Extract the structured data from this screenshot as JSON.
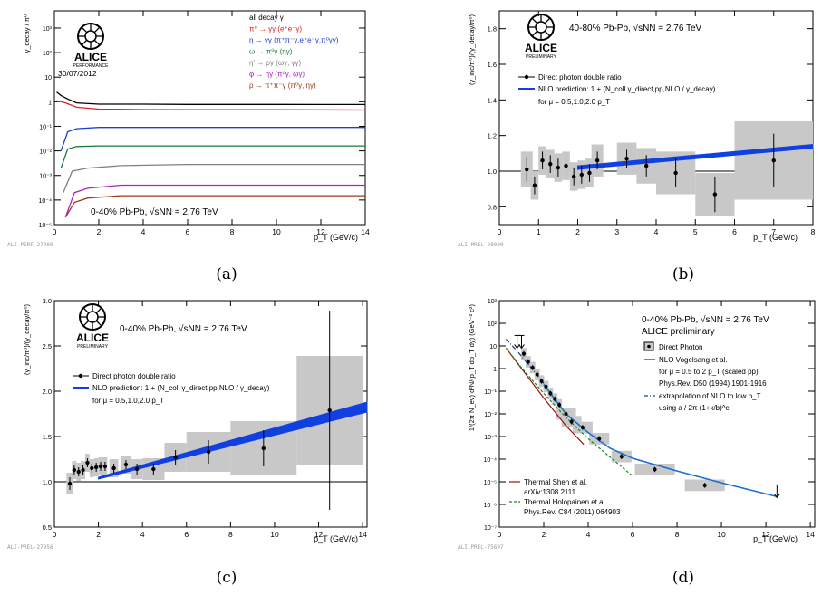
{
  "captions": [
    "(a)",
    "(b)",
    "(c)",
    "(d)"
  ],
  "chart_data": [
    {
      "type": "line",
      "id": "a",
      "ylabel": "γ_decay / π⁰",
      "xlabel": "p_T (GeV/c)",
      "logy": true,
      "xlim": [
        0,
        14
      ],
      "ylim": [
        1e-05,
        5000
      ],
      "xticks": [
        0,
        2,
        4,
        6,
        8,
        10,
        12,
        14
      ],
      "yticks": [
        "10⁻⁵",
        "10⁻⁴",
        "10⁻³",
        "10⁻²",
        "10⁻¹",
        "1",
        "10",
        "10²",
        "10³"
      ],
      "date": "30/07/2012",
      "logo": {
        "name": "ALICE",
        "subtitle": "PERFORMANCE"
      },
      "system_label": "0-40%  Pb-Pb, √sNN = 2.76 TeV",
      "tag": "ALI-PERF-27980",
      "legend": [
        {
          "label": "all decay γ",
          "color": "#000000"
        },
        {
          "label": "π⁰ → γγ (e⁺e⁻γ)",
          "color": "#e02020"
        },
        {
          "label": "η → γγ (π⁺π⁻γ,e⁺e⁻γ,π⁰γγ)",
          "color": "#1f3fd0"
        },
        {
          "label": "ω → π⁰γ (ηγ)",
          "color": "#1a7a3a"
        },
        {
          "label": "η' → ργ (ωγ, γγ)",
          "color": "#808080"
        },
        {
          "label": "φ → ηγ (π⁰γ, ωγ)",
          "color": "#b020c8"
        },
        {
          "label": "ρ → π⁺π⁻γ (π⁰γ, ηγ)",
          "color": "#9a3a1a"
        }
      ],
      "series": [
        {
          "name": "all decay γ",
          "color": "#000000",
          "points": [
            [
              0.1,
              2.5
            ],
            [
              0.3,
              1.8
            ],
            [
              0.6,
              1.3
            ],
            [
              1,
              0.9
            ],
            [
              2,
              0.8
            ],
            [
              4,
              0.8
            ],
            [
              6,
              0.78
            ],
            [
              8,
              0.78
            ],
            [
              10,
              0.78
            ],
            [
              12,
              0.77
            ],
            [
              14,
              0.77
            ]
          ]
        },
        {
          "name": "π⁰ → γγ (e⁺e⁻γ)",
          "color": "#e02020",
          "points": [
            [
              0.1,
              1.1
            ],
            [
              0.5,
              0.9
            ],
            [
              1,
              0.6
            ],
            [
              2,
              0.5
            ],
            [
              4,
              0.48
            ],
            [
              7,
              0.47
            ],
            [
              10,
              0.47
            ],
            [
              14,
              0.46
            ]
          ]
        },
        {
          "name": "η → γγ (π⁺π⁻γ,e⁺e⁻γ,π⁰γγ)",
          "color": "#1f3fd0",
          "points": [
            [
              0.3,
              0.01
            ],
            [
              0.6,
              0.06
            ],
            [
              1,
              0.08
            ],
            [
              2,
              0.09
            ],
            [
              4,
              0.09
            ],
            [
              7,
              0.09
            ],
            [
              10,
              0.09
            ],
            [
              14,
              0.09
            ]
          ]
        },
        {
          "name": "ω → π⁰γ (ηγ)",
          "color": "#1a7a3a",
          "points": [
            [
              0.3,
              0.002
            ],
            [
              0.6,
              0.012
            ],
            [
              1,
              0.015
            ],
            [
              2,
              0.016
            ],
            [
              5,
              0.016
            ],
            [
              10,
              0.016
            ],
            [
              14,
              0.016
            ]
          ]
        },
        {
          "name": "η' → ργ (ωγ, γγ)",
          "color": "#808080",
          "points": [
            [
              0.4,
              0.0002
            ],
            [
              0.8,
              0.0015
            ],
            [
              1.5,
              0.002
            ],
            [
              3,
              0.0025
            ],
            [
              6,
              0.0028
            ],
            [
              10,
              0.0028
            ],
            [
              14,
              0.0028
            ]
          ]
        },
        {
          "name": "φ → ηγ (π⁰γ, ωγ)",
          "color": "#b020c8",
          "points": [
            [
              0.5,
              2e-05
            ],
            [
              0.9,
              0.0002
            ],
            [
              1.5,
              0.0003
            ],
            [
              3,
              0.0004
            ],
            [
              6,
              0.0004
            ],
            [
              10,
              0.0004
            ],
            [
              14,
              0.0004
            ]
          ]
        },
        {
          "name": "ρ → π⁺π⁻γ (π⁰γ, ηγ)",
          "color": "#9a3a1a",
          "points": [
            [
              0.5,
              2e-05
            ],
            [
              0.9,
              8e-05
            ],
            [
              1.5,
              0.00012
            ],
            [
              3,
              0.00015
            ],
            [
              6,
              0.00015
            ],
            [
              10,
              0.00015
            ],
            [
              14,
              0.00015
            ]
          ]
        }
      ]
    },
    {
      "type": "scatter",
      "id": "b",
      "ylabel": "(γ_inc/π⁰)/(γ_decay/π⁰)",
      "xlabel": "p_T (GeV/c)",
      "xlim": [
        0,
        8
      ],
      "ylim": [
        0.7,
        1.9
      ],
      "xticks": [
        0,
        1,
        2,
        3,
        4,
        5,
        6,
        7,
        8
      ],
      "yticks": [
        0.8,
        1.0,
        1.2,
        1.4,
        1.6,
        1.8
      ],
      "logo": {
        "name": "ALICE",
        "subtitle": "PRELIMINARY"
      },
      "system_label": "40-80%  Pb-Pb, √sNN = 2.76 TeV",
      "tag": "ALI-PREL-28000",
      "legend": [
        {
          "label": "Direct photon double ratio"
        },
        {
          "label": "NLO prediction: 1 + (N_coll γ_direct,pp,NLO / γ_decay)"
        },
        {
          "label": "for μ = 0.5,1.0,2.0 p_T"
        }
      ],
      "points": [
        {
          "x": 0.7,
          "y": 1.01,
          "e": 0.07,
          "bx": 0.15,
          "by": 0.1
        },
        {
          "x": 0.9,
          "y": 0.92,
          "e": 0.05,
          "bx": 0.1,
          "by": 0.08
        },
        {
          "x": 1.1,
          "y": 1.06,
          "e": 0.05,
          "bx": 0.1,
          "by": 0.08
        },
        {
          "x": 1.3,
          "y": 1.04,
          "e": 0.05,
          "bx": 0.1,
          "by": 0.08
        },
        {
          "x": 1.5,
          "y": 1.02,
          "e": 0.05,
          "bx": 0.1,
          "by": 0.08
        },
        {
          "x": 1.7,
          "y": 1.03,
          "e": 0.05,
          "bx": 0.1,
          "by": 0.08
        },
        {
          "x": 1.9,
          "y": 0.97,
          "e": 0.05,
          "bx": 0.1,
          "by": 0.08
        },
        {
          "x": 2.1,
          "y": 0.98,
          "e": 0.05,
          "bx": 0.1,
          "by": 0.08
        },
        {
          "x": 2.3,
          "y": 0.99,
          "e": 0.05,
          "bx": 0.1,
          "by": 0.08
        },
        {
          "x": 2.5,
          "y": 1.06,
          "e": 0.05,
          "bx": 0.15,
          "by": 0.09
        },
        {
          "x": 3.25,
          "y": 1.07,
          "e": 0.05,
          "bx": 0.25,
          "by": 0.09
        },
        {
          "x": 3.75,
          "y": 1.03,
          "e": 0.06,
          "bx": 0.25,
          "by": 0.1
        },
        {
          "x": 4.5,
          "y": 0.99,
          "e": 0.08,
          "bx": 0.5,
          "by": 0.12
        },
        {
          "x": 5.5,
          "y": 0.87,
          "e": 0.1,
          "bx": 0.5,
          "by": 0.12
        },
        {
          "x": 7.0,
          "y": 1.06,
          "e": 0.15,
          "bx": 1.0,
          "by": 0.22
        }
      ],
      "band": {
        "x": [
          2,
          8
        ],
        "lo": [
          1.01,
          1.13
        ],
        "hi": [
          1.03,
          1.15
        ]
      }
    },
    {
      "type": "scatter",
      "id": "c",
      "ylabel": "(γ_inc/π⁰)/(γ_decay/π⁰)",
      "xlabel": "p_T (GeV/c)",
      "xlim": [
        0,
        14.2
      ],
      "ylim": [
        0.5,
        3.0
      ],
      "xticks": [
        0,
        2,
        4,
        6,
        8,
        10,
        12,
        14
      ],
      "yticks": [
        0.5,
        1.0,
        1.5,
        2.0,
        2.5,
        3.0
      ],
      "logo": {
        "name": "ALICE",
        "subtitle": "PRELIMINARY"
      },
      "system_label": "0-40%  Pb-Pb, √sNN = 2.76 TeV",
      "tag": "ALI-PREL-27956",
      "legend": [
        {
          "label": "Direct photon double ratio"
        },
        {
          "label": "NLO prediction: 1 + (N_coll γ_direct,pp,NLO / γ_decay)"
        },
        {
          "label": "for μ = 0.5,1.0,2.0 p_T"
        }
      ],
      "points": [
        {
          "x": 0.7,
          "y": 0.98,
          "e": 0.07,
          "bx": 0.15,
          "by": 0.12
        },
        {
          "x": 0.9,
          "y": 1.13,
          "e": 0.05,
          "bx": 0.1,
          "by": 0.1
        },
        {
          "x": 1.1,
          "y": 1.11,
          "e": 0.05,
          "bx": 0.1,
          "by": 0.1
        },
        {
          "x": 1.3,
          "y": 1.13,
          "e": 0.05,
          "bx": 0.1,
          "by": 0.1
        },
        {
          "x": 1.5,
          "y": 1.21,
          "e": 0.05,
          "bx": 0.1,
          "by": 0.1
        },
        {
          "x": 1.7,
          "y": 1.15,
          "e": 0.05,
          "bx": 0.1,
          "by": 0.1
        },
        {
          "x": 1.9,
          "y": 1.16,
          "e": 0.05,
          "bx": 0.1,
          "by": 0.1
        },
        {
          "x": 2.1,
          "y": 1.17,
          "e": 0.05,
          "bx": 0.1,
          "by": 0.1
        },
        {
          "x": 2.3,
          "y": 1.17,
          "e": 0.05,
          "bx": 0.1,
          "by": 0.1
        },
        {
          "x": 2.7,
          "y": 1.15,
          "e": 0.05,
          "bx": 0.2,
          "by": 0.1
        },
        {
          "x": 3.25,
          "y": 1.19,
          "e": 0.05,
          "bx": 0.25,
          "by": 0.1
        },
        {
          "x": 3.75,
          "y": 1.14,
          "e": 0.06,
          "bx": 0.25,
          "by": 0.11
        },
        {
          "x": 4.5,
          "y": 1.14,
          "e": 0.06,
          "bx": 0.5,
          "by": 0.12
        },
        {
          "x": 5.5,
          "y": 1.27,
          "e": 0.08,
          "bx": 0.5,
          "by": 0.16
        },
        {
          "x": 7.0,
          "y": 1.33,
          "e": 0.13,
          "bx": 1.0,
          "by": 0.22
        },
        {
          "x": 9.5,
          "y": 1.37,
          "e": 0.2,
          "bx": 1.5,
          "by": 0.3
        },
        {
          "x": 12.5,
          "y": 1.79,
          "e": 1.1,
          "bx": 1.5,
          "by": 0.6
        }
      ],
      "band": {
        "x": [
          2,
          14.2
        ],
        "lo": [
          1.03,
          1.77
        ],
        "hi": [
          1.05,
          1.88
        ]
      }
    },
    {
      "type": "scatter",
      "id": "d",
      "ylabel": "1/(2π N_ev) d²N/(p_T dp_T dy) (GeV⁻² c²)",
      "xlabel": "p_T (GeV/c)",
      "logy": true,
      "xlim": [
        0,
        14.2
      ],
      "ylim": [
        1e-07,
        1000
      ],
      "xticks": [
        0,
        2,
        4,
        6,
        8,
        10,
        12,
        14
      ],
      "yticks": [
        "10⁻⁷",
        "10⁻⁶",
        "10⁻⁵",
        "10⁻⁴",
        "10⁻³",
        "10⁻²",
        "10⁻¹",
        "1",
        "10",
        "10²",
        "10³"
      ],
      "system_label": "0-40% Pb-Pb, √sNN = 2.76 TeV",
      "status_label": "ALICE preliminary",
      "tag": "ALI-PREL-75697",
      "legend": [
        {
          "label": "Direct Photon"
        },
        {
          "label": "NLO Vogelsang et al."
        },
        {
          "label": "for μ = 0.5 to 2 p_T (scaled pp)"
        },
        {
          "label": "Phys.Rev. D50 (1994) 1901-1916"
        },
        {
          "label": "extrapolation of NLO to low p_T"
        },
        {
          "label": "using a / 2π (1+x/b)^c"
        }
      ],
      "legend2": [
        {
          "label": "Thermal Shen et al.",
          "color": "#a01010"
        },
        {
          "label": "arXiv:1308.2111"
        },
        {
          "label": "Thermal Holopainen et al.",
          "color": "#1a8a1a"
        },
        {
          "label": "Phys.Rev. C84 (2011) 064903"
        }
      ],
      "points": [
        {
          "x": 1.1,
          "y": 4.5
        },
        {
          "x": 1.3,
          "y": 2.0
        },
        {
          "x": 1.5,
          "y": 1.1
        },
        {
          "x": 1.7,
          "y": 0.55
        },
        {
          "x": 1.9,
          "y": 0.28
        },
        {
          "x": 2.1,
          "y": 0.16
        },
        {
          "x": 2.3,
          "y": 0.08
        },
        {
          "x": 2.5,
          "y": 0.045
        },
        {
          "x": 2.7,
          "y": 0.025
        },
        {
          "x": 3.0,
          "y": 0.01
        },
        {
          "x": 3.25,
          "y": 0.0045
        },
        {
          "x": 3.75,
          "y": 0.0025
        },
        {
          "x": 4.5,
          "y": 0.0008
        },
        {
          "x": 5.5,
          "y": 0.00013
        },
        {
          "x": 7.0,
          "y": 3.5e-05
        },
        {
          "x": 9.25,
          "y": 7e-06
        }
      ],
      "upper_limits": [
        {
          "x": 0.8,
          "y": 8
        },
        {
          "x": 1.0,
          "y": 8
        },
        {
          "x": 12.5,
          "y": 2e-06
        }
      ],
      "nlo": [
        [
          2,
          0.2
        ],
        [
          3,
          0.01
        ],
        [
          4,
          0.0015
        ],
        [
          5,
          0.0003
        ],
        [
          6,
          0.00011
        ],
        [
          8,
          3e-05
        ],
        [
          10,
          9e-06
        ],
        [
          12.5,
          2.2e-06
        ]
      ],
      "nlo_ext": [
        [
          0.3,
          20
        ],
        [
          0.8,
          6
        ],
        [
          1.2,
          2
        ],
        [
          1.6,
          0.7
        ],
        [
          2,
          0.22
        ]
      ],
      "shen": [
        [
          0.3,
          8
        ],
        [
          1,
          1
        ],
        [
          2,
          0.05
        ],
        [
          3,
          0.003
        ],
        [
          3.8,
          0.00045
        ]
      ],
      "holo": [
        [
          0.3,
          8
        ],
        [
          1,
          1.1
        ],
        [
          2,
          0.08
        ],
        [
          3,
          0.007
        ],
        [
          4,
          0.0008
        ],
        [
          5,
          0.00012
        ],
        [
          6,
          1.8e-05
        ]
      ]
    }
  ]
}
